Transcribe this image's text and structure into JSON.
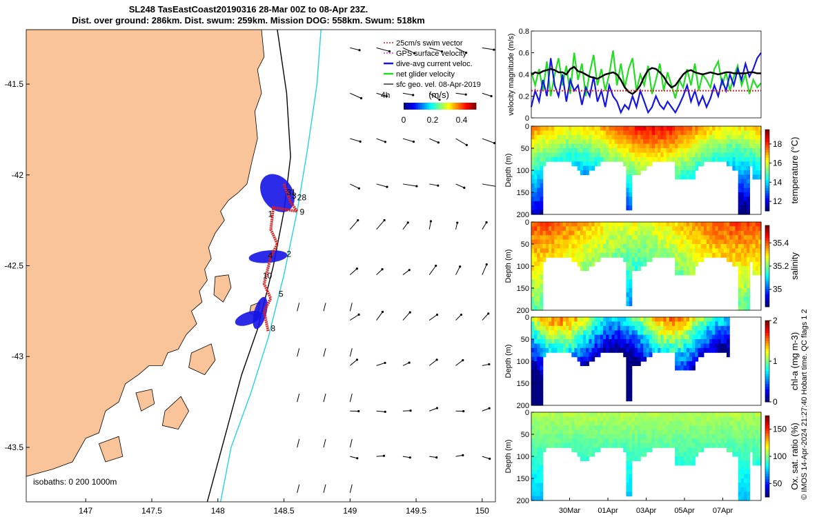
{
  "title": {
    "line1": "SL248 TasEastCoast20190316 28-Mar 00Z to 08-Apr 23Z.",
    "line2": "Dist. over ground: 286km. Dist. swum: 259km. Mission DOG: 558km. Swum: 518km"
  },
  "side_text": "© IMOS 14-Apr-2024 21:27:40 Hobart time. QC flags 1 2",
  "colors": {
    "land": "#f9c49a",
    "sea": "#ffffff",
    "isobath200": "#000000",
    "isobath1000": "#22d3e0",
    "glider_red": "#e21f1f",
    "glider_blue": "#1414e6",
    "glider_green": "#22dd22"
  },
  "chart_data": [
    {
      "type": "map",
      "xlim": [
        146.55,
        150.1
      ],
      "ylim": [
        -43.8,
        -41.2
      ],
      "xticks": [
        147,
        147.5,
        148,
        148.5,
        149,
        149.5,
        150
      ],
      "xtick_labels": [
        "147",
        "147.5",
        "148",
        "148.5",
        "149",
        "149.5",
        "150"
      ],
      "yticks": [
        -41.5,
        -42,
        -42.5,
        -43,
        -43.5
      ],
      "ytick_labels": [
        "-41.5",
        "-42",
        "-42.5",
        "-43",
        "-43.5"
      ],
      "isobath_label": "isobaths: 0   200  1000m",
      "legend": [
        {
          "label": "25cm/s swim vector",
          "color": "#e21f1f",
          "style": "dotted"
        },
        {
          "label": "GPS surface velocity",
          "color": "#c83cc8",
          "style": "dashed"
        },
        {
          "label": "dive-avg current veloc.",
          "color": "#1414e6",
          "style": "solid"
        },
        {
          "label": "net glider velocity",
          "color": "#22dd22",
          "style": "solid"
        },
        {
          "label": "sfc geo. vel. 08-Apr-2019",
          "color": "#000000",
          "style": "arrow"
        }
      ],
      "scale_label": "4h",
      "colorbar": {
        "title": "(m/s)",
        "ticks": [
          "0",
          "0.2",
          "0.4"
        ],
        "range": [
          0,
          0.5
        ]
      },
      "waypoint_labels": [
        {
          "text": "1",
          "lon": 148.38,
          "lat": -42.23
        },
        {
          "text": "2",
          "lon": 148.52,
          "lat": -42.45
        },
        {
          "text": "4",
          "lon": 148.38,
          "lat": -42.46
        },
        {
          "text": "5",
          "lon": 148.46,
          "lat": -42.67
        },
        {
          "text": "8",
          "lon": 148.4,
          "lat": -42.86
        },
        {
          "text": "9",
          "lon": 148.62,
          "lat": -42.22
        },
        {
          "text": "10",
          "lon": 148.34,
          "lat": -42.57
        },
        {
          "text": "28",
          "lon": 148.6,
          "lat": -42.14
        },
        {
          "text": "31",
          "lon": 148.52,
          "lat": -42.11
        },
        {
          "text": "3",
          "lon": 148.56,
          "lat": -42.13
        }
      ]
    },
    {
      "type": "line",
      "ylabel": "velocity magnitude (m/s)",
      "ylim": [
        0,
        0.8
      ],
      "yticks": [
        0,
        0.2,
        0.4,
        0.6,
        0.8
      ],
      "ytick_labels": [
        "0",
        "0.2",
        "0.4",
        "0.6",
        "0.8"
      ],
      "series": [
        {
          "name": "net glider velocity",
          "color": "#22dd22",
          "values": [
            0.42,
            0.3,
            0.45,
            0.25,
            0.52,
            0.2,
            0.4,
            0.55,
            0.3,
            0.48,
            0.22,
            0.6,
            0.35,
            0.5,
            0.2,
            0.42,
            0.58,
            0.3,
            0.45,
            0.25,
            0.4,
            0.62,
            0.3,
            0.5,
            0.28,
            0.45,
            0.55,
            0.25,
            0.4,
            0.3,
            0.48,
            0.22,
            0.35,
            0.5,
            0.25,
            0.42,
            0.3,
            0.18,
            0.35,
            0.28,
            0.45,
            0.3,
            0.5,
            0.25,
            0.4,
            0.35,
            0.28,
            0.45,
            0.52,
            0.3,
            0.42,
            0.25,
            0.38,
            0.48,
            0.3,
            0.4,
            0.22,
            0.35,
            0.28,
            0.32
          ]
        },
        {
          "name": "dive-avg current veloc.",
          "color": "#1414e6",
          "values": [
            0.1,
            0.25,
            0.15,
            0.35,
            0.2,
            0.55,
            0.3,
            0.2,
            0.4,
            0.15,
            0.35,
            0.25,
            0.3,
            0.12,
            0.28,
            0.2,
            0.38,
            0.15,
            0.25,
            0.1,
            0.3,
            0.2,
            0.15,
            0.05,
            0.12,
            0.08,
            0.2,
            0.1,
            0.25,
            0.15,
            0.05,
            0.1,
            0.2,
            0.12,
            0.08,
            0.15,
            0.1,
            0.05,
            0.12,
            0.2,
            0.3,
            0.15,
            0.25,
            0.12,
            0.2,
            0.1,
            0.18,
            0.3,
            0.2,
            0.35,
            0.25,
            0.4,
            0.3,
            0.45,
            0.35,
            0.5,
            0.38,
            0.45,
            0.55,
            0.6
          ]
        },
        {
          "name": "sfc geo. vel.",
          "color": "#000000",
          "values": [
            0.4,
            0.42,
            0.41,
            0.43,
            0.44,
            0.45,
            0.44,
            0.42,
            0.42,
            0.4,
            0.45,
            0.47,
            0.43,
            0.42,
            0.4,
            0.38,
            0.37,
            0.36,
            0.38,
            0.4,
            0.41,
            0.42,
            0.4,
            0.35,
            0.28,
            0.24,
            0.22,
            0.25,
            0.3,
            0.38,
            0.44,
            0.46,
            0.45,
            0.42,
            0.38,
            0.32,
            0.28,
            0.3,
            0.35,
            0.4,
            0.43,
            0.44,
            0.42,
            0.41,
            0.4,
            0.41,
            0.42,
            0.41,
            0.4,
            0.41,
            0.42,
            0.42,
            0.41,
            0.41,
            0.41,
            0.41,
            0.42,
            0.42,
            0.41,
            0.41
          ]
        },
        {
          "name": "25cm/s swim vector",
          "color": "#e21f1f",
          "constant": 0.25
        }
      ]
    },
    {
      "type": "heatmap",
      "ylabel": "Depth (m)",
      "clabel": "temperature (°C)",
      "ylim": [
        200,
        0
      ],
      "yticks": [
        0,
        50,
        100,
        150,
        200
      ],
      "ytick_labels": [
        "0",
        "50",
        "100",
        "150",
        "200"
      ],
      "crange": [
        11,
        19.5
      ],
      "cticks": [
        "12",
        "14",
        "16",
        "18"
      ],
      "ctick_values": [
        12,
        14,
        16,
        18
      ]
    },
    {
      "type": "heatmap",
      "ylabel": "Depth (m)",
      "clabel": "salinity",
      "ylim": [
        200,
        0
      ],
      "yticks": [
        0,
        50,
        100,
        150,
        200
      ],
      "ytick_labels": [
        "0",
        "50",
        "100",
        "150",
        "200"
      ],
      "crange": [
        34.85,
        35.55
      ],
      "cticks": [
        "35",
        "35.2",
        "35.4"
      ],
      "ctick_values": [
        35,
        35.2,
        35.4
      ]
    },
    {
      "type": "heatmap",
      "ylabel": "Depth (m)",
      "clabel": "chl-a (mg m-3)",
      "ylim": [
        200,
        0
      ],
      "yticks": [
        0,
        50,
        100,
        150,
        200
      ],
      "ytick_labels": [
        "0",
        "50",
        "100",
        "150",
        "200"
      ],
      "crange": [
        0,
        2
      ],
      "cticks": [
        "0",
        "1",
        "2"
      ],
      "ctick_values": [
        0,
        1,
        2
      ]
    },
    {
      "type": "heatmap",
      "ylabel": "Depth (m)",
      "clabel": "Ox. sat. ratio (%)",
      "ylim": [
        200,
        0
      ],
      "yticks": [
        0,
        50,
        100,
        150,
        200
      ],
      "ytick_labels": [
        "0",
        "50",
        "100",
        "150",
        "200"
      ],
      "crange": [
        25,
        175
      ],
      "cticks": [
        "50",
        "100",
        "150"
      ],
      "ctick_values": [
        50,
        100,
        150
      ],
      "xtick_labels": [
        "30Mar",
        "01Apr",
        "03Apr",
        "05Apr",
        "07Apr"
      ],
      "xtick_days": [
        2,
        4,
        6,
        8,
        10
      ]
    }
  ]
}
